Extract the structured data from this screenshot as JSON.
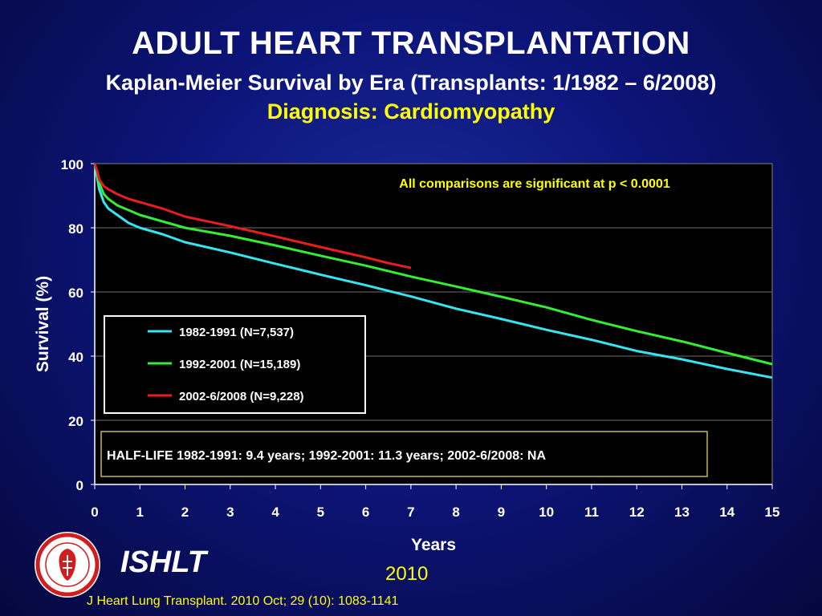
{
  "header": {
    "title": "ADULT HEART TRANSPLANTATION",
    "subtitle": "Kaplan-Meier Survival by Era (Transplants: 1/1982 – 6/2008)",
    "subtitle2": "Diagnosis: Cardiomyopathy"
  },
  "footer": {
    "org": "ISHLT",
    "year": "2010",
    "citation": "J Heart Lung Transplant. 2010 Oct; 29 (10): 1083-1141"
  },
  "colors": {
    "background": "#0c1478",
    "plot_bg": "#000000",
    "series_1982": "#33e6f0",
    "series_1992": "#33ee33",
    "series_2002": "#e81e1e",
    "annotation": "#ffff00"
  },
  "chart_data": {
    "type": "line",
    "xlabel": "Years",
    "ylabel": "Survival (%)",
    "xlim": [
      0,
      15
    ],
    "ylim": [
      0,
      100
    ],
    "xticks": [
      0,
      1,
      2,
      3,
      4,
      5,
      6,
      7,
      8,
      9,
      10,
      11,
      12,
      13,
      14,
      15
    ],
    "yticks": [
      0,
      20,
      40,
      60,
      80,
      100
    ],
    "grid": "horizontal",
    "annotation": "All comparisons are significant at p < 0.0001",
    "half_life_note": "HALF-LIFE 1982-1991: 9.4 years; 1992-2001: 11.3 years; 2002-6/2008: NA",
    "legend_position": "left-center",
    "series": [
      {
        "name": "1982-1991 (N=7,537)",
        "color": "#33e6f0",
        "x": [
          0,
          0.05,
          0.1,
          0.2,
          0.3,
          0.5,
          0.75,
          1,
          1.5,
          2,
          3,
          4,
          5,
          6,
          7,
          8,
          9,
          10,
          11,
          12,
          13,
          14,
          15
        ],
        "y": [
          100,
          96,
          92,
          88,
          86,
          84,
          81.5,
          80,
          78,
          75.5,
          72.3,
          68.8,
          65.4,
          62.1,
          58.6,
          54.8,
          51.6,
          48.2,
          45.1,
          41.6,
          39,
          36,
          33.3
        ]
      },
      {
        "name": "1992-2001 (N=15,189)",
        "color": "#33ee33",
        "x": [
          0,
          0.05,
          0.1,
          0.2,
          0.3,
          0.5,
          0.75,
          1,
          1.5,
          2,
          3,
          4,
          5,
          6,
          7,
          8,
          9,
          10,
          11,
          12,
          13,
          14,
          15
        ],
        "y": [
          100,
          97,
          94,
          90.5,
          89,
          87,
          85.5,
          84,
          82,
          80,
          77.5,
          74.5,
          71.3,
          68.2,
          64.8,
          61.7,
          58.5,
          55.2,
          51.3,
          47.8,
          44.6,
          41,
          37.5
        ]
      },
      {
        "name": "2002-6/2008 (N=9,228)",
        "color": "#e81e1e",
        "x": [
          0,
          0.05,
          0.1,
          0.2,
          0.3,
          0.5,
          0.75,
          1,
          1.5,
          2,
          3,
          4,
          5,
          6,
          6.5,
          7
        ],
        "y": [
          100,
          98,
          95,
          93,
          92,
          90.5,
          89,
          88,
          86,
          83.5,
          80.5,
          77.3,
          74,
          70.8,
          69,
          67.5
        ]
      }
    ]
  }
}
